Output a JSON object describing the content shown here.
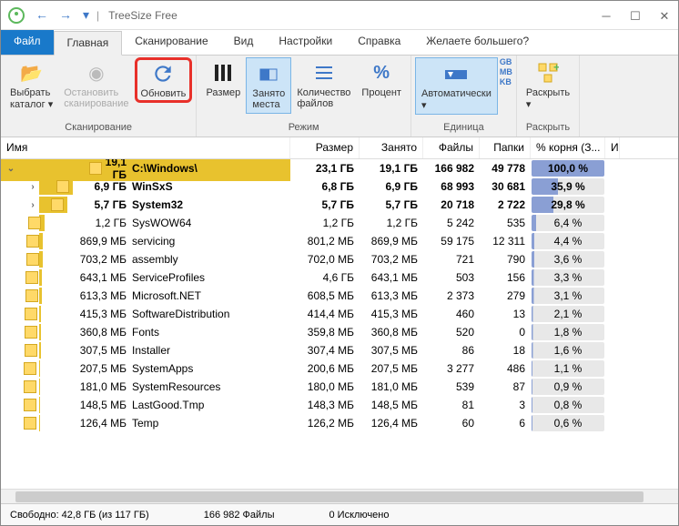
{
  "window": {
    "title": "TreeSize Free"
  },
  "tabs": {
    "file": "Файл",
    "main": "Главная",
    "scan": "Сканирование",
    "view": "Вид",
    "settings": "Настройки",
    "help": "Справка",
    "more": "Желаете большего?"
  },
  "ribbon": {
    "scan_group": "Сканирование",
    "mode_group": "Режим",
    "unit_group": "Единица",
    "expand_group": "Раскрыть",
    "select_catalog": "Выбрать каталог",
    "stop_scan": "Остановить сканирование",
    "refresh": "Обновить",
    "size": "Размер",
    "occupied": "Занято места",
    "file_count": "Количество файлов",
    "percent": "Процент",
    "auto": "Автоматически",
    "expand": "Раскрыть",
    "unit_gb": "GB",
    "unit_mb": "MB",
    "unit_kb": "KB"
  },
  "columns": {
    "name": "Имя",
    "size": "Размер",
    "occupied": "Занято",
    "files": "Файлы",
    "folders": "Папки",
    "pct_root": "% корня (З...",
    "last": "И"
  },
  "col_widths": {
    "name": 318,
    "size": 76,
    "occupied": 70,
    "files": 62,
    "folders": 56,
    "pct": 82,
    "last": 16
  },
  "rows": [
    {
      "level": 0,
      "size_label": "19,1 ГБ",
      "name": "C:\\Windows\\",
      "size": "23,1 ГБ",
      "occ": "19,1 ГБ",
      "files": "166 982",
      "folders": "49 778",
      "pct": "100,0 %",
      "pct_val": 100,
      "bold": true,
      "bar": 100
    },
    {
      "level": 1,
      "size_label": "6,9 ГБ",
      "name": "WinSxS",
      "size": "6,8 ГБ",
      "occ": "6,9 ГБ",
      "files": "68 993",
      "folders": "30 681",
      "pct": "35,9 %",
      "pct_val": 36,
      "bold": true,
      "bar": 36
    },
    {
      "level": 1,
      "size_label": "5,7 ГБ",
      "name": "System32",
      "size": "5,7 ГБ",
      "occ": "5,7 ГБ",
      "files": "20 718",
      "folders": "2 722",
      "pct": "29,8 %",
      "pct_val": 30,
      "bold": true,
      "bar": 30
    },
    {
      "level": 1,
      "size_label": "1,2 ГБ",
      "name": "SysWOW64",
      "size": "1,2 ГБ",
      "occ": "1,2 ГБ",
      "files": "5 242",
      "folders": "535",
      "pct": "6,4 %",
      "pct_val": 6,
      "bar": 6
    },
    {
      "level": 1,
      "size_label": "869,9 МБ",
      "name": "servicing",
      "size": "801,2 МБ",
      "occ": "869,9 МБ",
      "files": "59 175",
      "folders": "12 311",
      "pct": "4,4 %",
      "pct_val": 4,
      "bar": 4
    },
    {
      "level": 1,
      "size_label": "703,2 МБ",
      "name": "assembly",
      "size": "702,0 МБ",
      "occ": "703,2 МБ",
      "files": "721",
      "folders": "790",
      "pct": "3,6 %",
      "pct_val": 4,
      "bar": 4
    },
    {
      "level": 1,
      "size_label": "643,1 МБ",
      "name": "ServiceProfiles",
      "size": "4,6 ГБ",
      "occ": "643,1 МБ",
      "files": "503",
      "folders": "156",
      "pct": "3,3 %",
      "pct_val": 3,
      "bar": 3
    },
    {
      "level": 1,
      "size_label": "613,3 МБ",
      "name": "Microsoft.NET",
      "size": "608,5 МБ",
      "occ": "613,3 МБ",
      "files": "2 373",
      "folders": "279",
      "pct": "3,1 %",
      "pct_val": 3,
      "bar": 3
    },
    {
      "level": 1,
      "size_label": "415,3 МБ",
      "name": "SoftwareDistribution",
      "size": "414,4 МБ",
      "occ": "415,3 МБ",
      "files": "460",
      "folders": "13",
      "pct": "2,1 %",
      "pct_val": 2,
      "bar": 2
    },
    {
      "level": 1,
      "size_label": "360,8 МБ",
      "name": "Fonts",
      "size": "359,8 МБ",
      "occ": "360,8 МБ",
      "files": "520",
      "folders": "0",
      "pct": "1,8 %",
      "pct_val": 2,
      "bar": 2
    },
    {
      "level": 1,
      "size_label": "307,5 МБ",
      "name": "Installer",
      "size": "307,4 МБ",
      "occ": "307,5 МБ",
      "files": "86",
      "folders": "18",
      "pct": "1,6 %",
      "pct_val": 2,
      "bar": 2
    },
    {
      "level": 1,
      "size_label": "207,5 МБ",
      "name": "SystemApps",
      "size": "200,6 МБ",
      "occ": "207,5 МБ",
      "files": "3 277",
      "folders": "486",
      "pct": "1,1 %",
      "pct_val": 1,
      "bar": 1
    },
    {
      "level": 1,
      "size_label": "181,0 МБ",
      "name": "SystemResources",
      "size": "180,0 МБ",
      "occ": "181,0 МБ",
      "files": "539",
      "folders": "87",
      "pct": "0,9 %",
      "pct_val": 1,
      "bar": 1
    },
    {
      "level": 1,
      "size_label": "148,5 МБ",
      "name": "LastGood.Tmp",
      "size": "148,3 МБ",
      "occ": "148,5 МБ",
      "files": "81",
      "folders": "3",
      "pct": "0,8 %",
      "pct_val": 1,
      "bar": 1
    },
    {
      "level": 1,
      "size_label": "126,4 МБ",
      "name": "Temp",
      "size": "126,2 МБ",
      "occ": "126,4 МБ",
      "files": "60",
      "folders": "6",
      "pct": "0,6 %",
      "pct_val": 1,
      "bar": 1
    }
  ],
  "status": {
    "free": "Свободно: 42,8 ГБ (из 117 ГБ)",
    "files": "166 982 Файлы",
    "excluded": "0 Исключено"
  },
  "colors": {
    "accent": "#1979ca",
    "highlight_border": "#e8302a",
    "bar_fill": "#e8c22e",
    "pct_fill": "#8a9fd4"
  }
}
